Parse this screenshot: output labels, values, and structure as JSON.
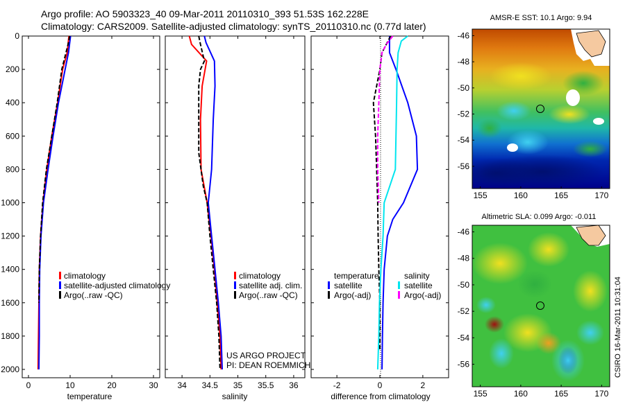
{
  "figure": {
    "title_line1": "Argo profile: AO 5903323_40 09-Mar-2011 20110310_393 51.53S 162.228E",
    "title_line2": "Climatology: CARS2009. Satellite-adjusted climatology: synTS_20110310.nc (0.77d later)",
    "credit_line1": "US ARGO PROJECT",
    "credit_line2": "PI: DEAN ROEMMICH",
    "side_label": "CSIRO 16-Mar-2011 10:31:04"
  },
  "colors": {
    "climatology": "#ff0000",
    "satellite": "#0000ff",
    "argo": "#000000",
    "satellite_diff": "#00e5ee",
    "argo_diff": "#ff00ff"
  },
  "chart_data": [
    {
      "type": "line",
      "xlabel": "temperature",
      "ylim": [
        2050,
        0
      ],
      "xlim": [
        -1.5,
        31.5
      ],
      "xticks": [
        "0",
        "10",
        "20",
        "30"
      ],
      "yticks": [
        "0",
        "200",
        "400",
        "600",
        "800",
        "1000",
        "1200",
        "1400",
        "1600",
        "1800",
        "2000"
      ],
      "legend": [
        "climatology",
        "satellite-adjusted climatology",
        "Argo(..raw -QC)"
      ],
      "series": [
        {
          "name": "climatology",
          "depth": [
            0,
            100,
            200,
            400,
            600,
            800,
            1000,
            1200,
            1400,
            1600,
            1800,
            2000
          ],
          "values": [
            9.7,
            9.3,
            8.2,
            7.0,
            5.6,
            4.4,
            3.5,
            2.9,
            2.6,
            2.5,
            2.4,
            2.3
          ]
        },
        {
          "name": "satellite-adjusted climatology",
          "depth": [
            0,
            100,
            200,
            400,
            600,
            800,
            1000,
            1200,
            1400,
            1600,
            1800,
            2000
          ],
          "values": [
            10.1,
            9.6,
            8.8,
            7.2,
            5.9,
            4.7,
            3.6,
            3.0,
            2.7,
            2.6,
            2.6,
            2.5
          ]
        },
        {
          "name": "Argo(..raw -QC)",
          "depth": [
            0,
            50,
            100,
            200,
            400,
            600,
            800,
            1000,
            1200,
            1400,
            1600
          ],
          "values": [
            9.9,
            9.5,
            9.0,
            8.0,
            6.9,
            5.6,
            4.3,
            3.4,
            2.9,
            2.6,
            2.5
          ]
        }
      ]
    },
    {
      "type": "line",
      "xlabel": "salinity",
      "ylim": [
        2050,
        0
      ],
      "xlim": [
        33.7,
        36.2
      ],
      "xticks": [
        "34",
        "34.5",
        "35",
        "35.5",
        "36"
      ],
      "legend": [
        "climatology",
        "satellite adj. clim.",
        "Argo(..raw -QC)"
      ],
      "series": [
        {
          "name": "climatology",
          "depth": [
            0,
            50,
            150,
            300,
            500,
            800,
            1000,
            1200,
            1400,
            1600,
            1800,
            2000
          ],
          "values": [
            34.13,
            34.17,
            34.44,
            34.36,
            34.33,
            34.34,
            34.45,
            34.52,
            34.58,
            34.63,
            34.68,
            34.7
          ]
        },
        {
          "name": "satellite adj. clim.",
          "depth": [
            0,
            40,
            150,
            300,
            500,
            800,
            1000,
            1200,
            1400,
            1600,
            1800,
            2000
          ],
          "values": [
            34.4,
            34.43,
            34.58,
            34.59,
            34.56,
            34.53,
            34.47,
            34.53,
            34.59,
            34.65,
            34.7,
            34.72
          ]
        },
        {
          "name": "Argo(..raw -QC)",
          "depth": [
            0,
            50,
            150,
            200,
            300,
            500,
            700,
            900,
            1000,
            1200,
            1400,
            1600,
            1800,
            2000
          ],
          "values": [
            34.3,
            34.33,
            34.4,
            34.33,
            34.3,
            34.3,
            34.3,
            34.38,
            34.45,
            34.5,
            34.56,
            34.62,
            34.66,
            34.68
          ]
        }
      ]
    },
    {
      "type": "line",
      "xlabel": "difference from climatology",
      "ylim": [
        2050,
        0
      ],
      "xlim": [
        -3.2,
        3.2
      ],
      "xticks": [
        "-2",
        "0",
        "2"
      ],
      "legend_headers": [
        "temperature",
        "salinity"
      ],
      "legend": [
        "satellite",
        "Argo(-adj)",
        "satellite",
        "Argo(-adj)"
      ],
      "series": [
        {
          "name": "satellite",
          "variable": "temperature",
          "depth": [
            0,
            100,
            200,
            400,
            600,
            800,
            1000,
            1100,
            1200,
            1400,
            1600,
            1800,
            2000
          ],
          "values": [
            0.45,
            0.45,
            0.75,
            1.3,
            1.7,
            1.75,
            1.1,
            0.6,
            0.35,
            0.2,
            0.15,
            0.12,
            0.1
          ]
        },
        {
          "name": "Argo(-adj)",
          "variable": "temperature",
          "depth": [
            0,
            100,
            200,
            400,
            600,
            800,
            1000,
            1200,
            1400,
            1600,
            1800,
            1880
          ],
          "values": [
            0.5,
            0.1,
            0.0,
            -0.3,
            -0.2,
            -0.15,
            -0.1,
            -0.08,
            -0.05,
            0.0,
            0.0,
            0.0
          ]
        },
        {
          "name": "satellite",
          "variable": "salinity",
          "depth": [
            0,
            30,
            100,
            200,
            400,
            600,
            800,
            1000,
            1200,
            1400,
            1600,
            1800,
            2000
          ],
          "values": [
            1.3,
            1.0,
            0.85,
            0.8,
            0.78,
            0.75,
            0.72,
            0.2,
            0.15,
            0.05,
            -0.02,
            -0.05,
            -0.1
          ]
        },
        {
          "name": "Argo(-adj)",
          "variable": "salinity",
          "depth": [
            0,
            50,
            100,
            200,
            400,
            600,
            800,
            1000
          ],
          "values": [
            0.6,
            0.3,
            0.1,
            0.0,
            -0.05,
            -0.1,
            -0.1,
            -0.05
          ]
        }
      ]
    },
    {
      "type": "heatmap",
      "title": "AMSR-E SST: 10.1 Argo: 9.94",
      "xlim": [
        154,
        171
      ],
      "ylim": [
        -57.7,
        -45.5
      ],
      "xticks": [
        "155",
        "160",
        "165",
        "170"
      ],
      "yticks": [
        "-46",
        "-48",
        "-50",
        "-52",
        "-54",
        "-56"
      ],
      "marker": {
        "lon": 162.228,
        "lat": -51.53
      }
    },
    {
      "type": "heatmap",
      "title": "Altimetric SLA: 0.099 Argo: -0.011",
      "xlim": [
        154,
        171
      ],
      "ylim": [
        -57.7,
        -45.5
      ],
      "xticks": [
        "155",
        "160",
        "165",
        "170"
      ],
      "yticks": [
        "-46",
        "-48",
        "-50",
        "-52",
        "-54",
        "-56"
      ],
      "marker": {
        "lon": 162.228,
        "lat": -51.53
      }
    }
  ]
}
